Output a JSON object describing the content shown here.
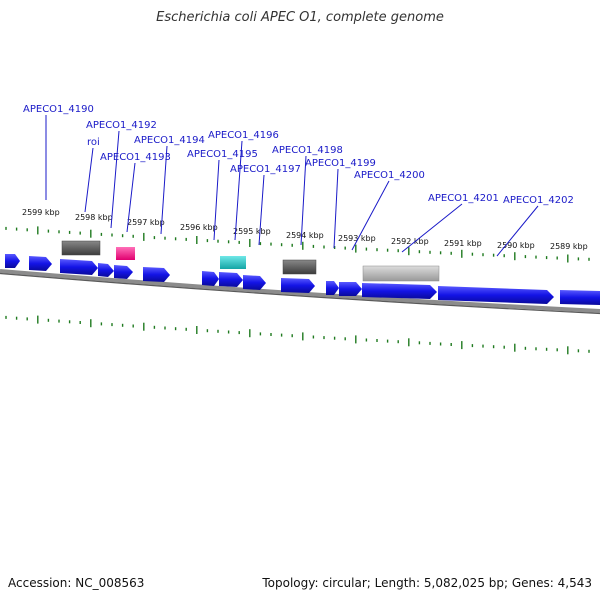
{
  "title": "Escherichia coli APEC O1, complete genome",
  "footer": {
    "accession": "Accession: NC_008563",
    "summary": "Topology: circular; Length: 5,082,025 bp; Genes: 4,543"
  },
  "colors": {
    "gene": "#1414e6",
    "backbone": "#8c8c8c",
    "tick": "#1f7a1f",
    "label": "#1a1ac8",
    "roi": "#ff1f8f",
    "teal": "#22c6c6",
    "dark_gray": "#555555",
    "light_gray": "#b5b5b5"
  },
  "kbp_labels": [
    "2599 kbp",
    "2598 kbp",
    "2597 kbp",
    "2596 kbp",
    "2595 kbp",
    "2594 kbp",
    "2593 kbp",
    "2592 kbp",
    "2591 kbp",
    "2590 kbp",
    "2589 kbp"
  ],
  "gene_labels": [
    "APECO1_4190",
    "APECO1_4192",
    "roi",
    "APECO1_4193",
    "APECO1_4194",
    "APECO1_4196",
    "APECO1_4195",
    "APECO1_4198",
    "APECO1_4197",
    "APECO1_4199",
    "APECO1_4200",
    "APECO1_4201",
    "APECO1_4202"
  ]
}
